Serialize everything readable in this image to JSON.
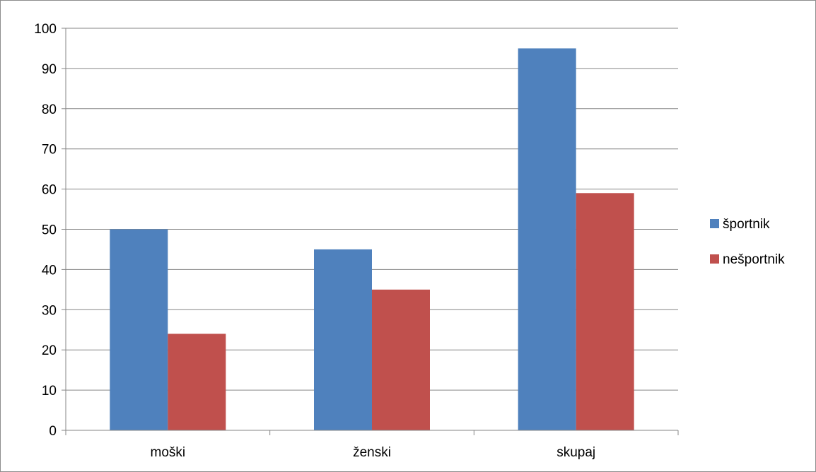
{
  "chart_data": {
    "type": "bar",
    "title": "",
    "xlabel": "",
    "ylabel": "",
    "categories": [
      "moški",
      "ženski",
      "skupaj"
    ],
    "series": [
      {
        "name": "športnik",
        "values": [
          50,
          45,
          95
        ],
        "color": "#4F81BD"
      },
      {
        "name": "nešportnik",
        "values": [
          24,
          35,
          59
        ],
        "color": "#C0504D"
      }
    ],
    "ylim": [
      0,
      100
    ],
    "yticks": [
      0,
      10,
      20,
      30,
      40,
      50,
      60,
      70,
      80,
      90,
      100
    ],
    "grid": true,
    "legend_position": "right",
    "axis_color": "#868686",
    "grid_color": "#868686"
  }
}
